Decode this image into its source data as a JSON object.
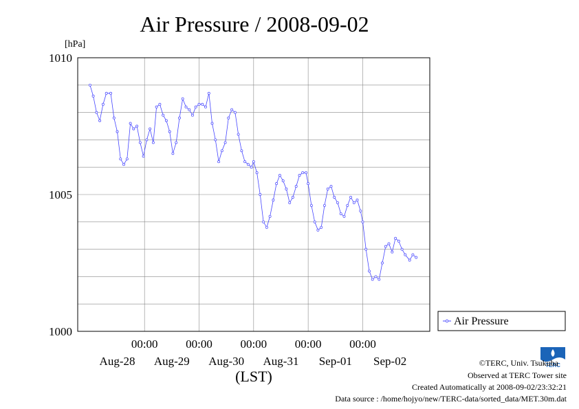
{
  "colors": {
    "series": "#4444ff",
    "grid": "#888888",
    "axis": "#000000"
  },
  "chart_data": {
    "type": "line",
    "title": "Air Pressure / 2008-09-02",
    "unit_label": "[hPa]",
    "xlabel": "(LST)",
    "ylim": [
      1000,
      1010
    ],
    "ytick_labels": [
      "1010",
      "1005",
      "1000"
    ],
    "xlim_days": [
      0,
      6
    ],
    "day_labels": [
      "Aug-28",
      "Aug-29",
      "Aug-30",
      "Aug-31",
      "Sep-01",
      "Sep-02"
    ],
    "time_labels": [
      "00:00",
      "00:00",
      "00:00",
      "00:00",
      "00:00"
    ],
    "grid": true,
    "legend_position": "right",
    "series": [
      {
        "name": "Air Pressure",
        "x": [
          0.0,
          0.06,
          0.12,
          0.18,
          0.24,
          0.3,
          0.38,
          0.44,
          0.5,
          0.56,
          0.62,
          0.68,
          0.74,
          0.8,
          0.86,
          0.92,
          0.98,
          1.04,
          1.1,
          1.16,
          1.22,
          1.28,
          1.34,
          1.4,
          1.46,
          1.52,
          1.58,
          1.64,
          1.7,
          1.76,
          1.82,
          1.88,
          1.94,
          2.0,
          2.06,
          2.12,
          2.18,
          2.24,
          2.3,
          2.36,
          2.42,
          2.48,
          2.54,
          2.6,
          2.66,
          2.72,
          2.78,
          2.84,
          2.9,
          2.96,
          3.0,
          3.06,
          3.12,
          3.18,
          3.24,
          3.3,
          3.36,
          3.42,
          3.48,
          3.54,
          3.6,
          3.66,
          3.72,
          3.78,
          3.84,
          3.9,
          3.96,
          4.0,
          4.06,
          4.12,
          4.18,
          4.24,
          4.3,
          4.36,
          4.42,
          4.48,
          4.54,
          4.6,
          4.66,
          4.72,
          4.78,
          4.84,
          4.9,
          4.96,
          5.0,
          5.06,
          5.12,
          5.18,
          5.24,
          5.3,
          5.36,
          5.42,
          5.48,
          5.54,
          5.6,
          5.66,
          5.72,
          5.78,
          5.86,
          5.92,
          5.98
        ],
        "values": [
          1009.0,
          1008.6,
          1008.0,
          1007.7,
          1008.3,
          1008.7,
          1008.7,
          1007.8,
          1007.3,
          1006.3,
          1006.1,
          1006.3,
          1007.6,
          1007.4,
          1007.5,
          1006.9,
          1006.4,
          1007.0,
          1007.4,
          1006.9,
          1008.2,
          1008.3,
          1007.9,
          1007.7,
          1007.3,
          1006.5,
          1006.9,
          1007.8,
          1008.5,
          1008.2,
          1008.1,
          1007.9,
          1008.2,
          1008.3,
          1008.3,
          1008.2,
          1008.7,
          1007.6,
          1007.0,
          1006.2,
          1006.6,
          1006.9,
          1007.8,
          1008.1,
          1008.0,
          1007.2,
          1006.6,
          1006.2,
          1006.1,
          1006.0,
          1006.2,
          1005.8,
          1005.0,
          1004.0,
          1003.8,
          1004.2,
          1004.8,
          1005.4,
          1005.7,
          1005.5,
          1005.2,
          1004.7,
          1004.9,
          1005.3,
          1005.7,
          1005.8,
          1005.8,
          1005.4,
          1004.6,
          1004.0,
          1003.7,
          1003.8,
          1004.6,
          1005.2,
          1005.3,
          1004.9,
          1004.7,
          1004.3,
          1004.2,
          1004.6,
          1004.9,
          1004.7,
          1004.8,
          1004.4,
          1004.0,
          1003.0,
          1002.2,
          1001.9,
          1002.0,
          1001.9,
          1002.5,
          1003.1,
          1003.2,
          1002.9,
          1003.4,
          1003.3,
          1003.0,
          1002.8,
          1002.6,
          1002.8,
          1002.7
        ]
      }
    ]
  },
  "footer": {
    "copyright": "©TERC, Univ. Tsukuba",
    "observed": "Observed at TERC Tower site",
    "created": "Created Automatically at 2008-09-02/23:32:21",
    "source": "Data source : /home/hojyo/new/TERC-data/sorted_data/MET.30m.dat",
    "logo_text": "TERC"
  }
}
